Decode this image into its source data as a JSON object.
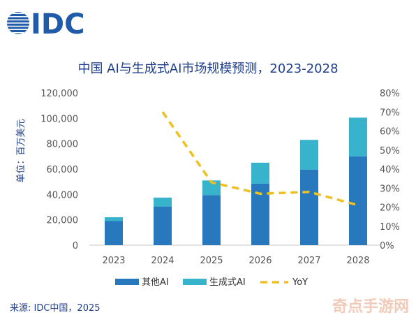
{
  "logo_text": "IDC",
  "source_note": "来源: IDC中国，2025",
  "watermark": "奇点手游网",
  "colors": {
    "brand": "#1f5ba8",
    "other_ai": "#2878be",
    "gen_ai": "#38b3cc",
    "yoy": "#f0c020",
    "axis_text": "#555555",
    "title": "#1f3f8c"
  },
  "chart_data": {
    "type": "bar",
    "stacked": true,
    "title": "中国 AI与生成式AI市场规模预测，2023-2028",
    "ylabel": "单位：百万美元",
    "categories": [
      "2023",
      "2024",
      "2025",
      "2026",
      "2027",
      "2028"
    ],
    "ylim": [
      0,
      120000
    ],
    "yticks": [
      "0",
      "20,000",
      "40,000",
      "60,000",
      "80,000",
      "100,000",
      "120,000"
    ],
    "y2lim": [
      0,
      80
    ],
    "y2ticks": [
      "0%",
      "10%",
      "20%",
      "30%",
      "40%",
      "50%",
      "60%",
      "70%",
      "80%"
    ],
    "series": [
      {
        "name": "其他AI",
        "values": [
          19000,
          30500,
          39500,
          48500,
          59500,
          70000
        ]
      },
      {
        "name": "生成式AI",
        "values": [
          3000,
          7000,
          11500,
          16500,
          23500,
          30500
        ]
      },
      {
        "name": "YoY",
        "axis": "right",
        "line_style": "dashed",
        "values": [
          null,
          70,
          33,
          27,
          28,
          21
        ]
      }
    ],
    "legend": [
      "其他AI",
      "生成式AI",
      "YoY"
    ],
    "legend_position": "bottom"
  }
}
